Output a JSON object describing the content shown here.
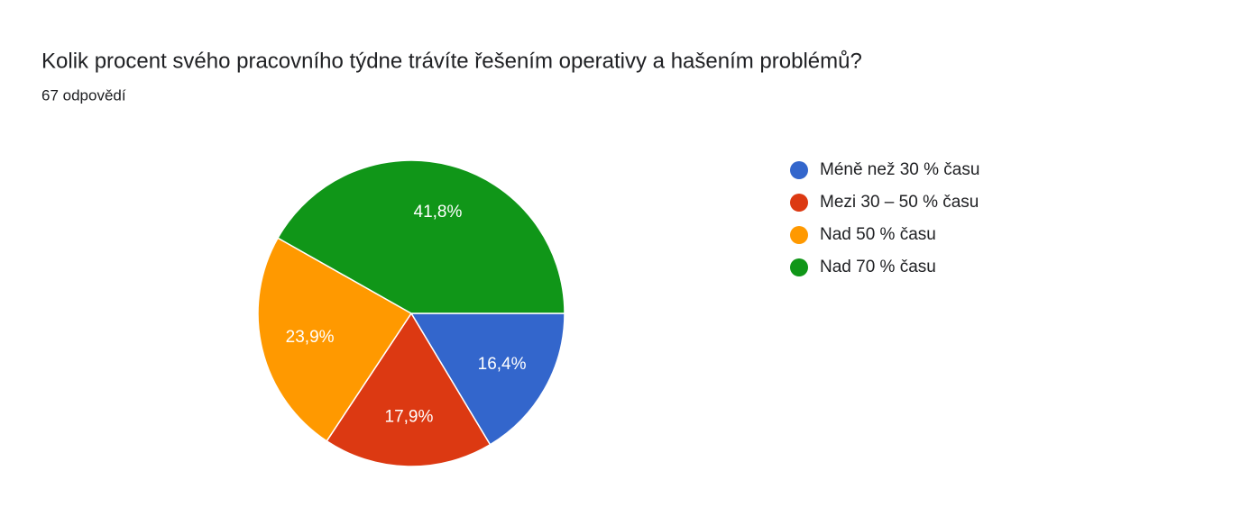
{
  "chart_data": {
    "type": "pie",
    "title": "Kolik procent svého pracovního týdne trávíte řešením operativy a hašením problémů?",
    "subtitle": "67 odpovědí",
    "categories": [
      "Méně než 30 % času",
      "Mezi 30 – 50 % času",
      "Nad 50 % času",
      "Nad 70 % času"
    ],
    "values": [
      16.4,
      17.9,
      23.9,
      41.8
    ],
    "value_labels": [
      "16,4%",
      "17,9%",
      "23,9%",
      "41,8%"
    ],
    "colors": [
      "#3366cc",
      "#dc3912",
      "#ff9900",
      "#109618"
    ]
  }
}
